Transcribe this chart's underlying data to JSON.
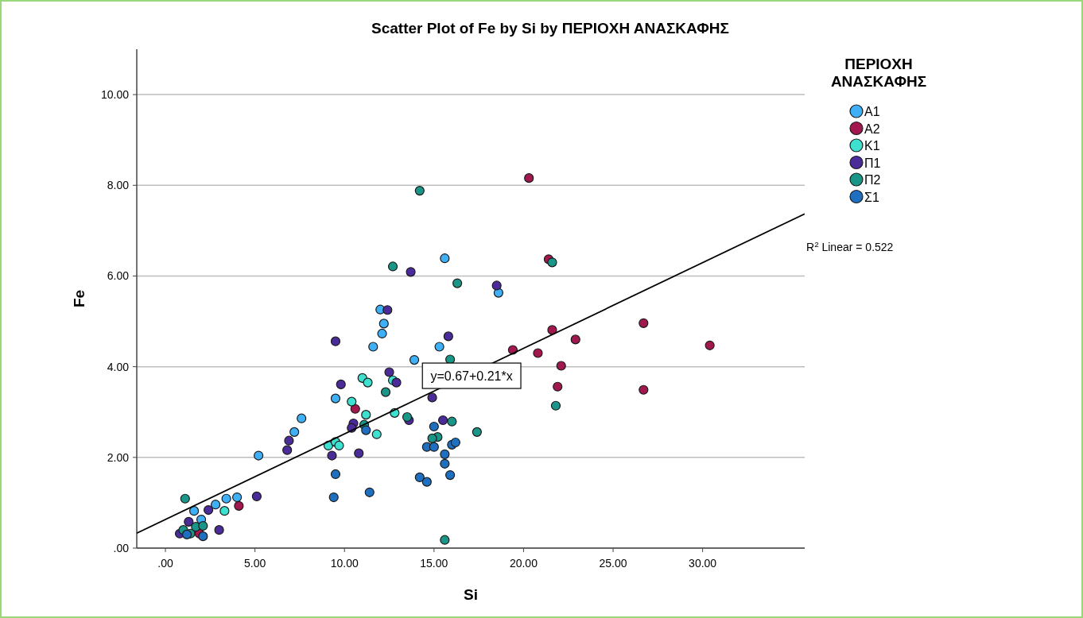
{
  "chart_data": {
    "type": "scatter",
    "title": "Scatter Plot of Fe by Si by ΠΕΡΙΟΧΗ ΑΝΑΣΚΑΦΗΣ",
    "xlabel": "Si",
    "ylabel": "Fe",
    "legend_title": "ΠΕΡΙΟΧΗ ΑΝΑΣΚΑΦΗΣ",
    "legend": "top right",
    "grid": "y",
    "marker": "circle",
    "xlim": [
      -1.6,
      35.7
    ],
    "ylim": [
      0,
      11
    ],
    "xticks": [
      {
        "value": 0,
        "label": ".00"
      },
      {
        "value": 5,
        "label": "5.00"
      },
      {
        "value": 10,
        "label": "10.00"
      },
      {
        "value": 15,
        "label": "15.00"
      },
      {
        "value": 20,
        "label": "20.00"
      },
      {
        "value": 25,
        "label": "25.00"
      },
      {
        "value": 30,
        "label": "30.00"
      }
    ],
    "yticks": [
      {
        "value": 0,
        "label": ".00"
      },
      {
        "value": 2,
        "label": "2.00"
      },
      {
        "value": 4,
        "label": "4.00"
      },
      {
        "value": 6,
        "label": "6.00"
      },
      {
        "value": 8,
        "label": "8.00"
      },
      {
        "value": 10,
        "label": "10.00"
      }
    ],
    "series": [
      {
        "name": "Α1",
        "color": "#3fb0f5",
        "x": [
          5.2,
          7.6,
          7.2,
          1.6,
          2.8,
          3.4,
          4.0,
          2.0,
          15.6,
          12.0,
          12.2,
          12.1,
          11.6,
          15.3,
          13.9,
          9.5,
          18.6
        ],
        "values": [
          2.04,
          2.86,
          2.56,
          0.82,
          0.96,
          1.09,
          1.12,
          0.63,
          6.39,
          5.26,
          4.95,
          4.73,
          4.44,
          4.44,
          4.15,
          3.3,
          5.63
        ]
      },
      {
        "name": "Α2",
        "color": "#a3174f",
        "x": [
          20.3,
          21.4,
          21.6,
          19.4,
          20.8,
          22.9,
          22.1,
          21.9,
          26.7,
          26.7,
          30.4,
          10.6,
          4.1,
          1.9
        ],
        "values": [
          8.16,
          6.37,
          4.81,
          4.37,
          4.3,
          4.6,
          4.02,
          3.56,
          4.96,
          3.49,
          4.47,
          3.07,
          0.93,
          0.32
        ]
      },
      {
        "name": "Κ1",
        "color": "#3ee0d0",
        "x": [
          10.4,
          11.2,
          9.1,
          9.5,
          9.7,
          3.3,
          11.0,
          11.3,
          12.8,
          11.8,
          12.7
        ],
        "values": [
          3.23,
          2.94,
          2.26,
          2.34,
          2.26,
          0.82,
          3.75,
          3.65,
          2.98,
          2.51,
          3.7
        ]
      },
      {
        "name": "Π1",
        "color": "#4b2a9a",
        "x": [
          6.9,
          6.8,
          9.3,
          10.8,
          10.5,
          10.4,
          5.1,
          2.4,
          1.3,
          0.8,
          3.0,
          9.5,
          13.7,
          12.4,
          15.8,
          12.5,
          12.9,
          9.8,
          14.9,
          13.6,
          15.5,
          18.5
        ],
        "values": [
          2.37,
          2.16,
          2.04,
          2.09,
          2.75,
          2.65,
          1.14,
          0.84,
          0.58,
          0.32,
          0.4,
          4.56,
          6.09,
          5.25,
          4.67,
          3.88,
          3.65,
          3.61,
          3.32,
          2.82,
          2.82,
          5.79
        ]
      },
      {
        "name": "Π2",
        "color": "#1a9688",
        "x": [
          14.2,
          12.7,
          16.3,
          21.6,
          15.9,
          12.3,
          13.5,
          16.0,
          15.2,
          14.9,
          17.4,
          15.6,
          21.8,
          1.1,
          1.0,
          1.7,
          2.1,
          1.4,
          11.1
        ],
        "values": [
          7.88,
          6.21,
          5.84,
          6.3,
          4.16,
          3.44,
          2.89,
          2.79,
          2.45,
          2.42,
          2.56,
          0.18,
          3.14,
          1.09,
          0.4,
          0.47,
          0.49,
          0.32,
          2.72
        ]
      },
      {
        "name": "Σ1",
        "color": "#1f6fc0",
        "x": [
          9.5,
          9.4,
          11.4,
          11.2,
          2.1,
          1.2,
          15.0,
          14.6,
          15.0,
          15.6,
          16.0,
          16.2,
          15.6,
          15.9,
          14.2,
          14.6
        ],
        "values": [
          1.63,
          1.12,
          1.23,
          2.6,
          0.26,
          0.3,
          2.68,
          2.23,
          2.23,
          2.07,
          2.28,
          2.33,
          1.86,
          1.61,
          1.56,
          1.46
        ]
      },
      {
        "type": "line",
        "color": "#000000",
        "x": [
          -1.6,
          35.7
        ],
        "values": [
          0.33,
          7.37
        ],
        "marker": "none"
      }
    ],
    "annotations": [
      {
        "text": "y=0.67+0.21*x",
        "x": 17.1,
        "y": 3.8
      },
      "R$^{2}$ Linear = 0.522"
    ]
  }
}
